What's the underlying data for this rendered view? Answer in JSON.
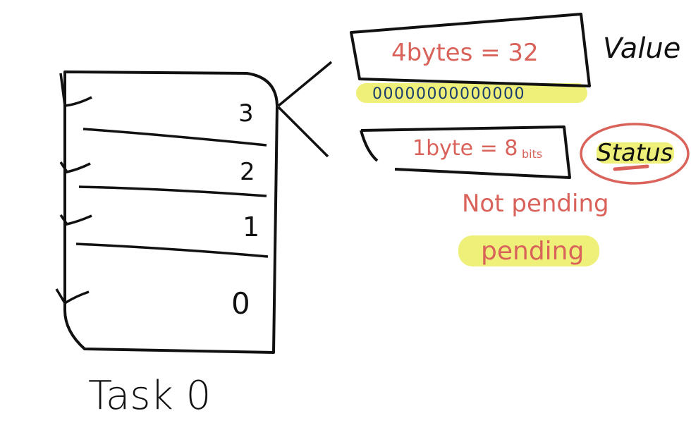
{
  "task": {
    "title": "Task 0",
    "slots": [
      "3",
      "2",
      "1",
      "0"
    ]
  },
  "value_box": {
    "text": "4bytes = 32",
    "bits": "00000000000000",
    "label": "Value"
  },
  "status_box": {
    "text_main": "1byte = 8",
    "text_sub": "bits",
    "label": "Status"
  },
  "states": {
    "not_pending": "Not pending",
    "pending": "pending"
  },
  "colors": {
    "ink": "#111111",
    "red": "#d9625a",
    "highlight": "#eef07a",
    "bits_ink": "#1a3d6b"
  }
}
